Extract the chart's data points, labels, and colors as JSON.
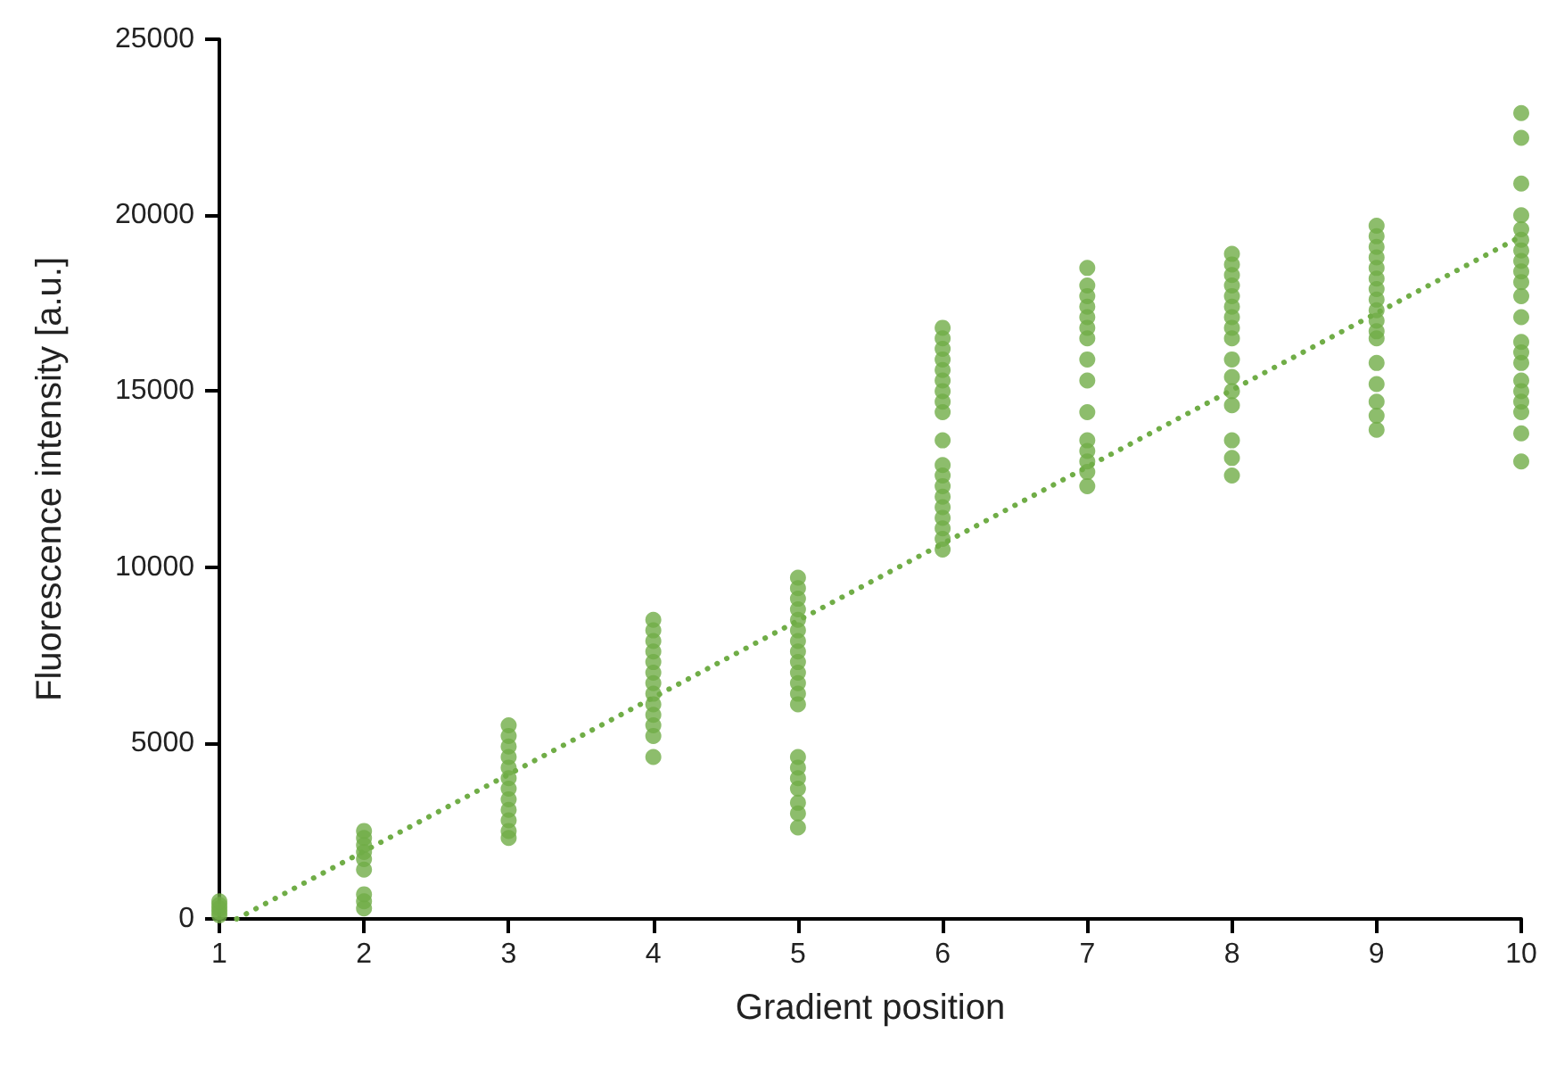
{
  "chart_data": {
    "type": "scatter",
    "xlabel": "Gradient position",
    "ylabel": "Fluorescence intensity [a.u.]",
    "xlim": [
      1,
      10
    ],
    "xticks": [
      1,
      2,
      3,
      4,
      5,
      6,
      7,
      8,
      9,
      10
    ],
    "ylim": [
      0,
      25000
    ],
    "yticks": [
      0,
      5000,
      10000,
      15000,
      20000,
      25000
    ],
    "grid": false,
    "marker": "circle",
    "series": [
      {
        "color": "#70ad47",
        "x": [
          1,
          1,
          1,
          1,
          1,
          2,
          2,
          2,
          2,
          2,
          2,
          2,
          2,
          2,
          3,
          3,
          3,
          3,
          3,
          3,
          3,
          3,
          3,
          3,
          3,
          3,
          4,
          4,
          4,
          4,
          4,
          4,
          4,
          4,
          4,
          4,
          4,
          4,
          4,
          5,
          5,
          5,
          5,
          5,
          5,
          5,
          5,
          5,
          5,
          5,
          5,
          5,
          5,
          5,
          5,
          5,
          5,
          5,
          5,
          6,
          6,
          6,
          6,
          6,
          6,
          6,
          6,
          6,
          6,
          6,
          6,
          6,
          6,
          6,
          6,
          6,
          6,
          6,
          7,
          7,
          7,
          7,
          7,
          7,
          7,
          7,
          7,
          7,
          7,
          7,
          7,
          7,
          7,
          8,
          8,
          8,
          8,
          8,
          8,
          8,
          8,
          8,
          8,
          8,
          8,
          8,
          8,
          8,
          8,
          9,
          9,
          9,
          9,
          9,
          9,
          9,
          9,
          9,
          9,
          9,
          9,
          9,
          9,
          9,
          9,
          9,
          10,
          10,
          10,
          10,
          10,
          10,
          10,
          10,
          10,
          10,
          10,
          10,
          10,
          10,
          10,
          10,
          10,
          10,
          10,
          10,
          10
        ],
        "values": [
          100,
          200,
          300,
          400,
          500,
          2500,
          2300,
          2100,
          1900,
          1700,
          1400,
          700,
          500,
          300,
          5500,
          5200,
          4900,
          4600,
          4300,
          4000,
          3700,
          3400,
          3100,
          2800,
          2500,
          2300,
          8500,
          8200,
          7900,
          7600,
          7300,
          7000,
          6700,
          6400,
          6100,
          5800,
          5500,
          5200,
          4600,
          9700,
          9400,
          9100,
          8800,
          8500,
          8200,
          7900,
          7600,
          7300,
          7000,
          6700,
          6400,
          6100,
          4600,
          4300,
          4000,
          3700,
          3300,
          3000,
          2600,
          16800,
          16500,
          16200,
          15900,
          15600,
          15300,
          15000,
          14700,
          14400,
          13600,
          12900,
          12600,
          12300,
          12000,
          11700,
          11400,
          11100,
          10800,
          10500,
          18500,
          18000,
          17700,
          17400,
          17100,
          16800,
          16500,
          15900,
          15300,
          14400,
          13600,
          13300,
          13000,
          12700,
          12300,
          18900,
          18600,
          18300,
          18000,
          17700,
          17400,
          17100,
          16800,
          16500,
          15900,
          15400,
          15000,
          14600,
          13600,
          13100,
          12600,
          19700,
          19400,
          19100,
          18800,
          18500,
          18200,
          17900,
          17600,
          17300,
          17000,
          16700,
          16500,
          15800,
          15200,
          14700,
          14300,
          13900,
          22900,
          22200,
          20900,
          20000,
          19600,
          19300,
          19000,
          18700,
          18400,
          18100,
          17700,
          17100,
          16400,
          16100,
          15800,
          15300,
          15000,
          14700,
          14400,
          13800,
          13000
        ]
      },
      {
        "type": "line",
        "color": "#70ad47",
        "line_style": "dotted",
        "marker": "none",
        "x": [
          1.12,
          10
        ],
        "values": [
          0,
          19400
        ]
      }
    ]
  }
}
